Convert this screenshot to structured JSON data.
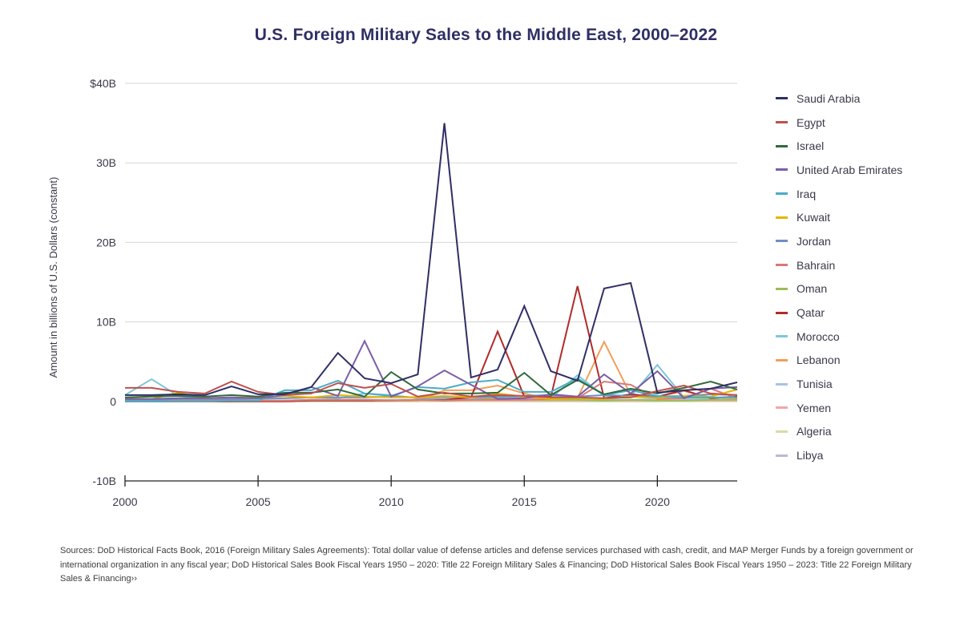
{
  "chart_data": {
    "type": "line",
    "title": "U.S. Foreign Military Sales to the Middle East, 2000–2022",
    "xlabel": "",
    "ylabel": "Amount in billions of U.S. Dollars (constant)",
    "xlim": [
      2000,
      2023
    ],
    "ylim": [
      -10,
      40
    ],
    "x_ticks": [
      2000,
      2005,
      2010,
      2015,
      2020
    ],
    "x_tick_labels": [
      "2000",
      "2005",
      "2010",
      "2015",
      "2020"
    ],
    "y_ticks": [
      -10,
      0,
      10,
      20,
      30,
      40
    ],
    "y_tick_labels": [
      "-10B",
      "0",
      "10B",
      "20B",
      "30B",
      "$40B"
    ],
    "grid": true,
    "legend_position": "right",
    "x": [
      2000,
      2001,
      2002,
      2003,
      2004,
      2005,
      2006,
      2007,
      2008,
      2009,
      2010,
      2011,
      2012,
      2013,
      2014,
      2015,
      2016,
      2017,
      2018,
      2019,
      2020,
      2021,
      2022,
      2023
    ],
    "series": [
      {
        "name": "Saudi Arabia",
        "color": "#2e2f64",
        "values": [
          0.8,
          0.8,
          0.9,
          0.8,
          1.9,
          0.9,
          0.9,
          1.8,
          6.1,
          2.9,
          2.3,
          3.4,
          35.0,
          3.0,
          4.0,
          12.0,
          3.8,
          2.6,
          14.2,
          14.9,
          1.1,
          1.4,
          1.6,
          2.4
        ]
      },
      {
        "name": "Egypt",
        "color": "#c0504d",
        "values": [
          1.7,
          1.7,
          1.2,
          1.0,
          2.5,
          1.2,
          0.8,
          1.0,
          2.3,
          1.7,
          2.2,
          0.6,
          1.1,
          0.6,
          0.8,
          0.7,
          0.5,
          0.5,
          0.4,
          0.5,
          1.3,
          2.0,
          1.0,
          0.8
        ]
      },
      {
        "name": "Israel",
        "color": "#2f6b3c",
        "values": [
          0.5,
          0.6,
          0.7,
          0.6,
          0.8,
          0.6,
          1.1,
          1.1,
          1.5,
          0.6,
          3.7,
          1.5,
          1.0,
          1.0,
          1.1,
          3.6,
          0.8,
          2.7,
          0.9,
          1.6,
          1.0,
          1.7,
          2.5,
          1.5
        ]
      },
      {
        "name": "United Arab Emirates",
        "color": "#7b5ea7",
        "values": [
          0.3,
          0.3,
          0.4,
          0.4,
          0.5,
          0.4,
          0.8,
          1.8,
          0.7,
          7.6,
          0.6,
          1.9,
          3.9,
          2.1,
          0.3,
          0.4,
          0.9,
          0.6,
          3.4,
          1.0,
          3.8,
          0.4,
          1.6,
          1.8
        ]
      },
      {
        "name": "Iraq",
        "color": "#4bacc6",
        "values": [
          0.0,
          0.0,
          0.0,
          0.0,
          0.1,
          0.1,
          1.4,
          1.4,
          2.6,
          1.0,
          0.7,
          1.8,
          1.6,
          2.4,
          2.7,
          1.2,
          1.2,
          2.9,
          0.8,
          1.4,
          0.7,
          0.5,
          0.5,
          0.5
        ]
      },
      {
        "name": "Kuwait",
        "color": "#e8b400",
        "values": [
          0.4,
          0.3,
          1.1,
          0.4,
          0.5,
          0.5,
          0.7,
          0.5,
          0.8,
          0.6,
          0.5,
          0.5,
          0.7,
          0.5,
          1.0,
          0.6,
          0.3,
          0.4,
          0.3,
          0.6,
          0.4,
          0.7,
          0.6,
          1.5
        ]
      },
      {
        "name": "Jordan",
        "color": "#6e8fc4",
        "values": [
          0.2,
          0.2,
          0.3,
          0.3,
          0.3,
          0.4,
          0.4,
          0.5,
          0.5,
          0.5,
          0.6,
          0.5,
          0.6,
          0.5,
          0.6,
          0.7,
          0.8,
          0.6,
          0.8,
          0.7,
          0.6,
          0.7,
          0.9,
          0.8
        ]
      },
      {
        "name": "Bahrain",
        "color": "#d9797a",
        "values": [
          0.3,
          0.1,
          0.1,
          0.1,
          0.2,
          0.1,
          0.1,
          0.2,
          0.2,
          0.2,
          0.1,
          0.2,
          0.1,
          0.2,
          0.2,
          0.2,
          0.3,
          0.4,
          2.5,
          2.1,
          0.3,
          0.4,
          1.6,
          0.4
        ]
      },
      {
        "name": "Oman",
        "color": "#9bbb59",
        "values": [
          0.1,
          0.1,
          0.2,
          0.3,
          0.1,
          0.1,
          0.1,
          0.2,
          0.2,
          0.2,
          0.1,
          0.2,
          0.1,
          0.2,
          0.4,
          0.2,
          0.2,
          0.2,
          0.1,
          0.2,
          0.1,
          0.1,
          0.2,
          0.2
        ]
      },
      {
        "name": "Qatar",
        "color": "#b22a2a",
        "values": [
          0.0,
          0.0,
          0.0,
          0.0,
          0.0,
          0.0,
          0.0,
          0.1,
          0.1,
          0.1,
          0.1,
          0.2,
          0.2,
          0.5,
          8.8,
          0.6,
          0.6,
          14.5,
          0.4,
          0.9,
          0.6,
          1.4,
          0.4,
          0.6
        ]
      },
      {
        "name": "Morocco",
        "color": "#7ec8d9",
        "values": [
          0.8,
          2.8,
          0.7,
          0.3,
          0.2,
          0.3,
          0.4,
          0.5,
          0.4,
          1.0,
          0.8,
          0.4,
          0.5,
          0.5,
          0.4,
          0.6,
          0.4,
          3.3,
          0.7,
          0.6,
          4.6,
          0.5,
          0.4,
          0.6
        ]
      },
      {
        "name": "Lebanon",
        "color": "#f0a05a",
        "values": [
          0.0,
          0.1,
          0.1,
          0.0,
          0.0,
          0.1,
          0.1,
          0.1,
          0.2,
          0.1,
          0.1,
          0.1,
          1.4,
          1.4,
          2.0,
          1.0,
          0.3,
          0.4,
          7.5,
          0.8,
          0.6,
          1.3,
          0.5,
          0.4
        ]
      },
      {
        "name": "Tunisia",
        "color": "#a9c3e0",
        "values": [
          0.1,
          0.1,
          0.1,
          0.1,
          0.1,
          0.1,
          0.1,
          0.1,
          0.2,
          0.2,
          0.2,
          0.2,
          0.3,
          0.3,
          0.4,
          0.3,
          0.6,
          0.5,
          0.2,
          0.2,
          0.3,
          0.3,
          0.2,
          0.3
        ]
      },
      {
        "name": "Yemen",
        "color": "#f2a7a7",
        "values": [
          0.0,
          0.0,
          0.0,
          0.1,
          0.1,
          0.1,
          0.1,
          0.1,
          0.1,
          0.1,
          0.1,
          0.1,
          0.1,
          0.1,
          0.1,
          0.1,
          0.1,
          0.1,
          0.1,
          0.1,
          0.1,
          0.1,
          0.1,
          0.1
        ]
      },
      {
        "name": "Algeria",
        "color": "#cfe0a5",
        "values": [
          0.0,
          0.0,
          0.0,
          0.0,
          0.0,
          0.0,
          0.0,
          0.0,
          0.0,
          0.0,
          0.0,
          0.0,
          0.0,
          0.0,
          0.0,
          0.0,
          0.0,
          0.0,
          0.0,
          0.0,
          0.0,
          0.0,
          0.0,
          0.0
        ]
      },
      {
        "name": "Libya",
        "color": "#b9b9d6",
        "values": [
          0.0,
          0.0,
          0.0,
          0.0,
          0.0,
          0.0,
          0.0,
          0.0,
          0.0,
          0.0,
          0.0,
          0.0,
          0.1,
          0.1,
          0.1,
          0.0,
          0.0,
          0.0,
          0.0,
          0.0,
          0.0,
          0.1,
          0.1,
          0.1
        ]
      }
    ]
  },
  "sources_text": "Sources: DoD Historical Facts Book, 2016 (Foreign Military Sales Agreements): Total dollar value of defense articles and defense services purchased with cash, credit, and MAP Merger Funds by a foreign government or international organization in any fiscal year; DoD Historical Sales Book Fiscal Years 1950 – 2020: Title 22 Foreign Military Sales & Financing; DoD Historical Sales Book Fiscal Years 1950 – 2023: Title 22 Foreign Military Sales & Financing››"
}
